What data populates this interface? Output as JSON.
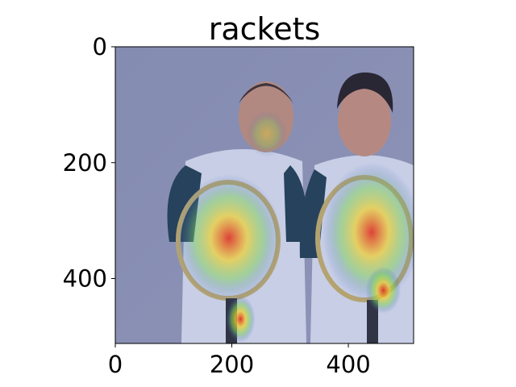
{
  "chart_data": {
    "type": "heatmap",
    "title": "rackets",
    "xlabel": "",
    "ylabel": "",
    "xlim": [
      0,
      512
    ],
    "ylim": [
      512,
      0
    ],
    "x_ticks": [
      0,
      200,
      400
    ],
    "y_ticks": [
      0,
      200,
      400
    ],
    "grid": false,
    "image_description_colors": {
      "background": "#8c8fa8",
      "overlay_low": "#3c5bd6",
      "overlay_mid": "#7fd05a",
      "overlay_high": "#e02a1a"
    },
    "attention_regions": [
      {
        "label": "racket-left",
        "cx": 195,
        "cy": 330,
        "rx": 90,
        "ry": 110,
        "intensity": 0.85
      },
      {
        "label": "racket-right",
        "cx": 440,
        "cy": 320,
        "rx": 85,
        "ry": 120,
        "intensity": 0.85
      },
      {
        "label": "handle-left",
        "cx": 215,
        "cy": 470,
        "rx": 25,
        "ry": 40,
        "intensity": 0.95
      },
      {
        "label": "handle-right",
        "cx": 460,
        "cy": 420,
        "rx": 30,
        "ry": 40,
        "intensity": 0.9
      },
      {
        "label": "face-left",
        "cx": 260,
        "cy": 150,
        "rx": 35,
        "ry": 40,
        "intensity": 0.45
      }
    ]
  }
}
